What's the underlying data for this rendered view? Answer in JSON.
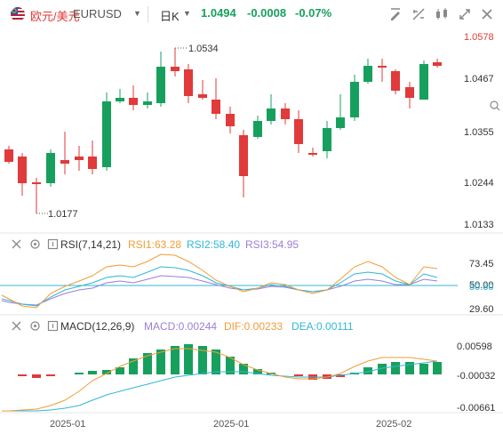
{
  "header": {
    "base": "欧元/美元",
    "symbol": "EURUSD",
    "timeframe": "日K",
    "last_price": "1.0494",
    "change": "-0.0008",
    "change_pct": "-0.07%",
    "tools": [
      "draw-tool-icon",
      "measure-icon",
      "compare-icon",
      "fullscreen-icon",
      "close-icon"
    ]
  },
  "main_chart": {
    "price_axis": [
      "1.0578",
      "1.0467",
      "1.0355",
      "1.0244",
      "1.0133"
    ],
    "top_axis_label_color": "#e03a3a",
    "max_label": "1.0534",
    "min_label": "1.0177",
    "up_color": "#17a05d",
    "down_color": "#e03a3a"
  },
  "rsi": {
    "name": "RSI(7,14,21)",
    "rsi1": "RSI1:63.28",
    "rsi2": "RSI2:58.40",
    "rsi3": "RSI3:54.95",
    "axis": [
      "73.45",
      "50.00",
      "50.80",
      "29.60"
    ],
    "colors": {
      "rsi1": "#f29c38",
      "rsi2": "#30b7d6",
      "rsi3": "#9b7fd4"
    }
  },
  "macd": {
    "name": "MACD(12,26,9)",
    "macd": "MACD:0.00244",
    "dif": "DIF:0.00233",
    "dea": "DEA:0.00111",
    "axis": [
      "0.00598",
      "-0.00032",
      "-0.00661"
    ],
    "colors": {
      "macd": "#9b7fd4",
      "dif": "#f29c38",
      "dea": "#30b7d6"
    }
  },
  "time_axis": [
    "2025-01",
    "2025-01",
    "2025-02"
  ]
}
